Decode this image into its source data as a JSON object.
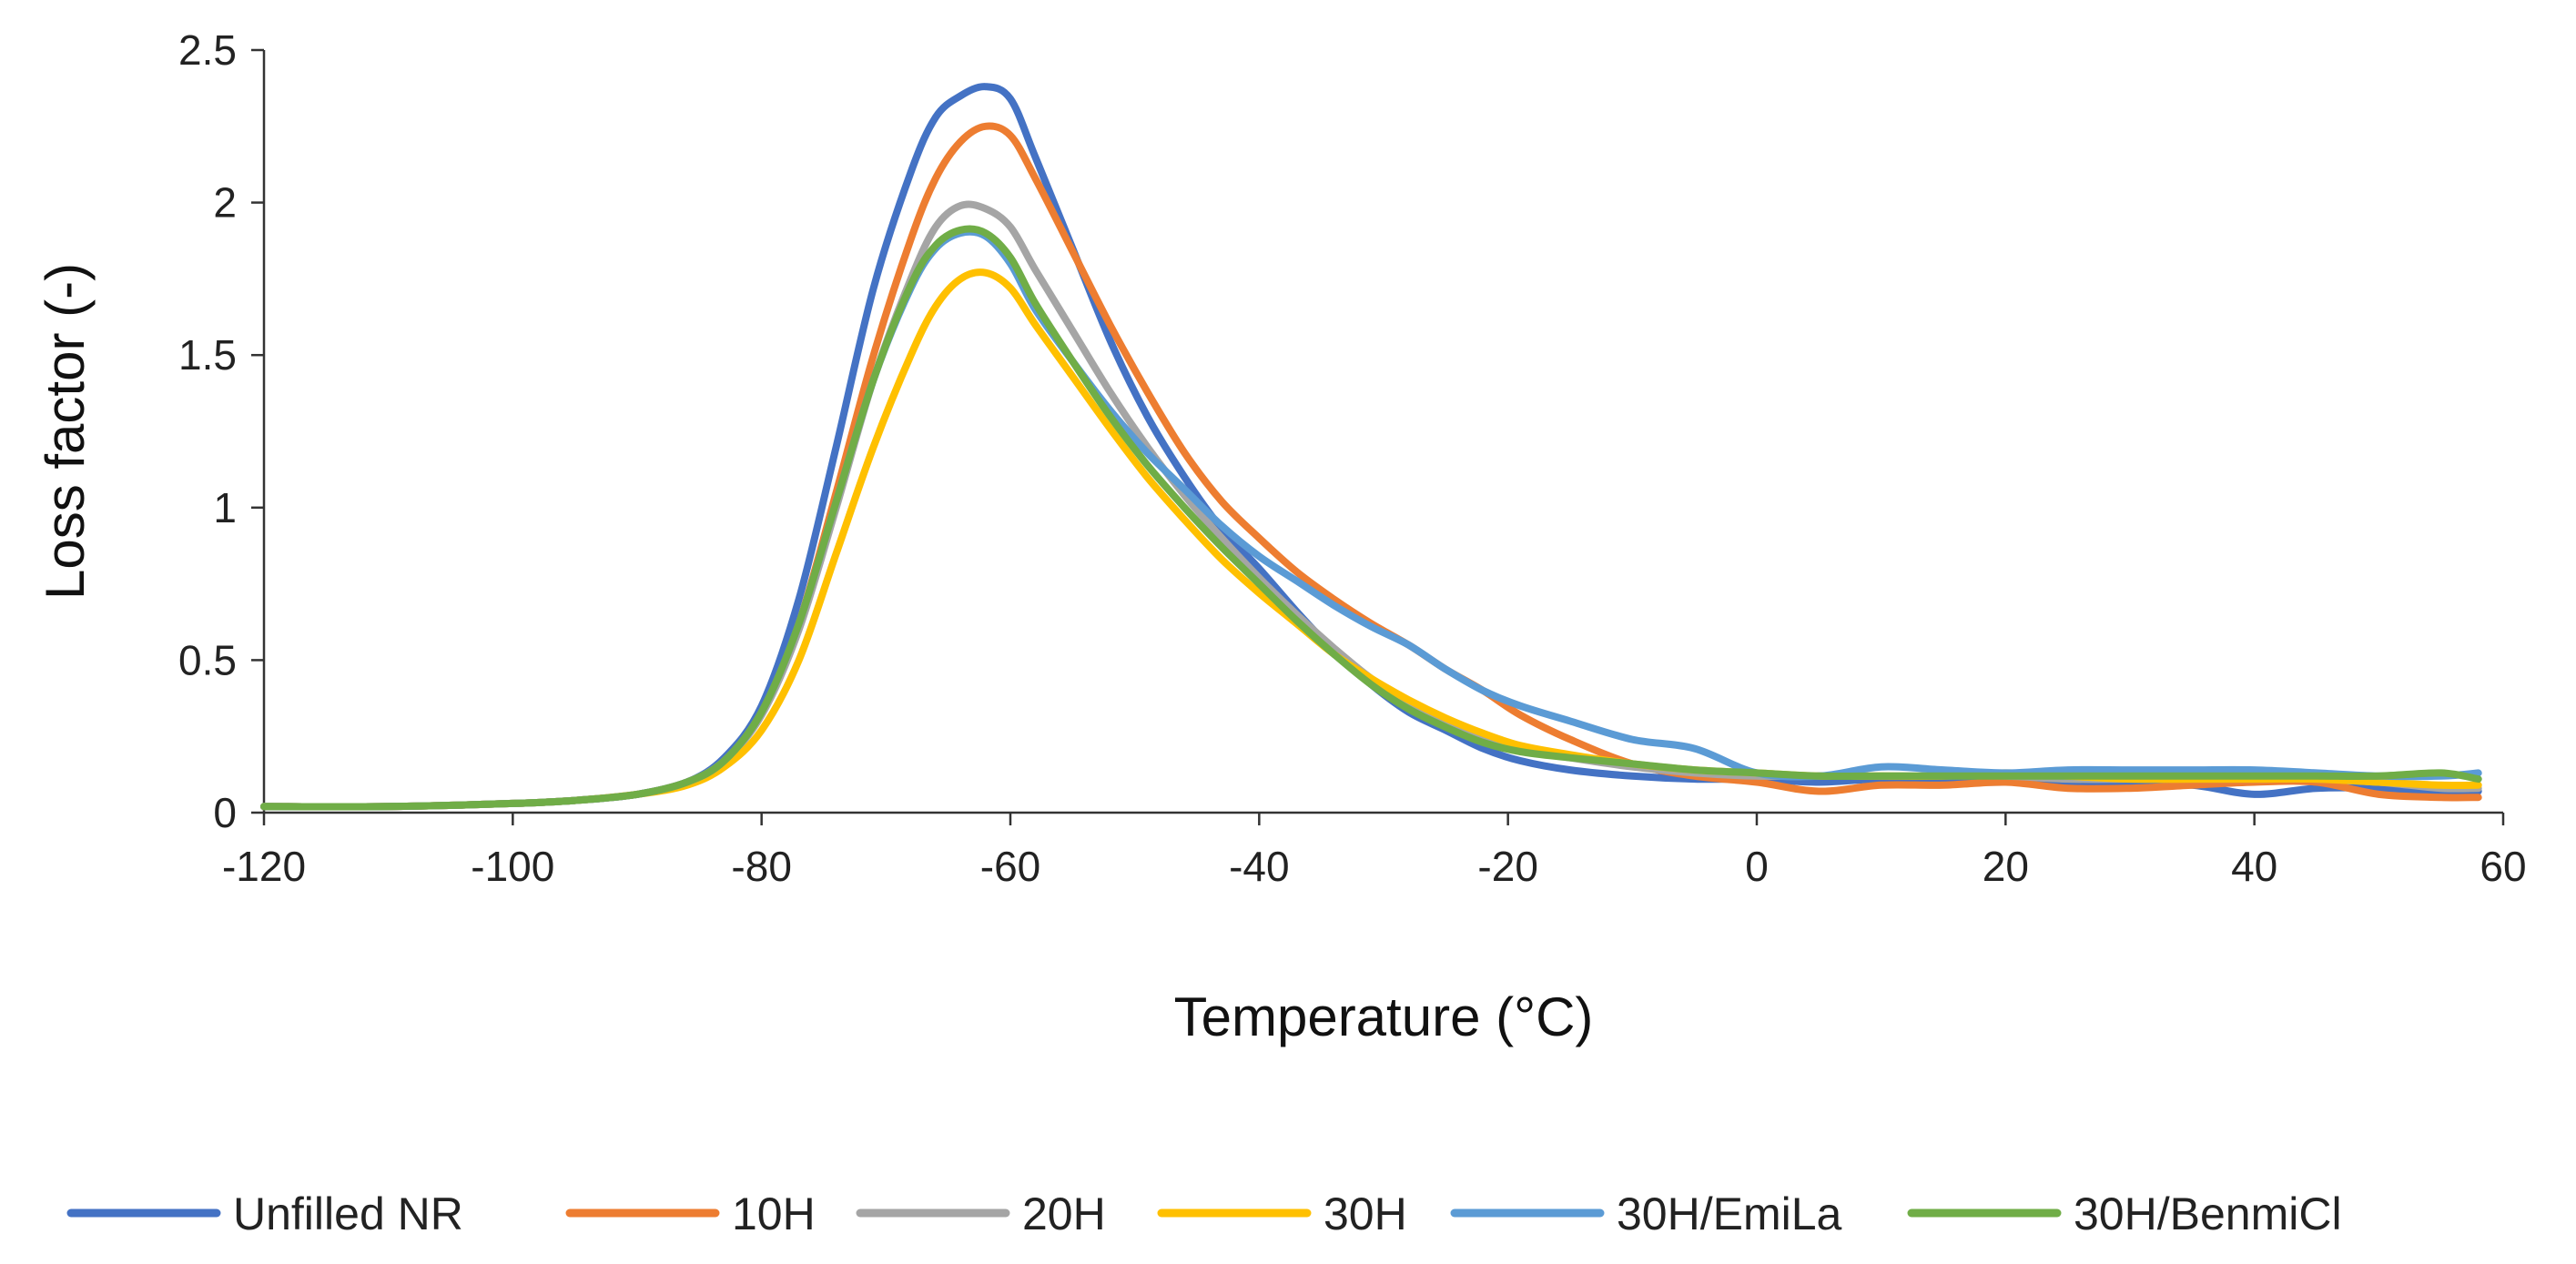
{
  "chart_data": {
    "type": "line",
    "xlabel": "Temperature (°C)",
    "ylabel": "Loss factor (-)",
    "xlim": [
      -120,
      60
    ],
    "ylim": [
      0,
      2.5
    ],
    "x_ticks": [
      "-120",
      "-100",
      "-80",
      "-60",
      "-40",
      "-20",
      "0",
      "20",
      "40",
      "60"
    ],
    "y_ticks": [
      "0",
      "0.5",
      "1",
      "1.5",
      "2",
      "2.5"
    ],
    "grid": false,
    "legend_position": "bottom",
    "series": [
      {
        "name": "Unfilled NR",
        "color": "#4472C4",
        "points": [
          [
            -120,
            0.02
          ],
          [
            -110,
            0.02
          ],
          [
            -100,
            0.03
          ],
          [
            -95,
            0.04
          ],
          [
            -90,
            0.06
          ],
          [
            -86,
            0.1
          ],
          [
            -83,
            0.18
          ],
          [
            -80,
            0.35
          ],
          [
            -77,
            0.7
          ],
          [
            -74,
            1.2
          ],
          [
            -71,
            1.72
          ],
          [
            -68,
            2.1
          ],
          [
            -66,
            2.28
          ],
          [
            -64,
            2.35
          ],
          [
            -62,
            2.38
          ],
          [
            -60,
            2.34
          ],
          [
            -58,
            2.15
          ],
          [
            -55,
            1.85
          ],
          [
            -52,
            1.55
          ],
          [
            -49,
            1.3
          ],
          [
            -46,
            1.1
          ],
          [
            -43,
            0.93
          ],
          [
            -40,
            0.8
          ],
          [
            -37,
            0.66
          ],
          [
            -34,
            0.53
          ],
          [
            -31,
            0.42
          ],
          [
            -28,
            0.33
          ],
          [
            -25,
            0.27
          ],
          [
            -22,
            0.21
          ],
          [
            -19,
            0.17
          ],
          [
            -15,
            0.14
          ],
          [
            -10,
            0.12
          ],
          [
            -5,
            0.11
          ],
          [
            0,
            0.11
          ],
          [
            5,
            0.1
          ],
          [
            10,
            0.11
          ],
          [
            15,
            0.1
          ],
          [
            20,
            0.1
          ],
          [
            25,
            0.1
          ],
          [
            30,
            0.09
          ],
          [
            35,
            0.09
          ],
          [
            40,
            0.06
          ],
          [
            45,
            0.08
          ],
          [
            50,
            0.08
          ],
          [
            55,
            0.07
          ],
          [
            58,
            0.07
          ]
        ]
      },
      {
        "name": "10H",
        "color": "#ED7D31",
        "points": [
          [
            -120,
            0.02
          ],
          [
            -110,
            0.02
          ],
          [
            -100,
            0.03
          ],
          [
            -95,
            0.04
          ],
          [
            -90,
            0.06
          ],
          [
            -86,
            0.1
          ],
          [
            -83,
            0.17
          ],
          [
            -80,
            0.33
          ],
          [
            -77,
            0.62
          ],
          [
            -74,
            1.05
          ],
          [
            -71,
            1.5
          ],
          [
            -68,
            1.88
          ],
          [
            -66,
            2.08
          ],
          [
            -64,
            2.2
          ],
          [
            -62,
            2.25
          ],
          [
            -60,
            2.22
          ],
          [
            -58,
            2.08
          ],
          [
            -55,
            1.84
          ],
          [
            -52,
            1.6
          ],
          [
            -49,
            1.38
          ],
          [
            -46,
            1.18
          ],
          [
            -43,
            1.02
          ],
          [
            -40,
            0.9
          ],
          [
            -37,
            0.79
          ],
          [
            -34,
            0.7
          ],
          [
            -31,
            0.62
          ],
          [
            -28,
            0.55
          ],
          [
            -25,
            0.47
          ],
          [
            -22,
            0.4
          ],
          [
            -19,
            0.32
          ],
          [
            -15,
            0.24
          ],
          [
            -10,
            0.16
          ],
          [
            -5,
            0.12
          ],
          [
            0,
            0.1
          ],
          [
            5,
            0.07
          ],
          [
            10,
            0.09
          ],
          [
            15,
            0.09
          ],
          [
            20,
            0.1
          ],
          [
            25,
            0.08
          ],
          [
            30,
            0.08
          ],
          [
            35,
            0.09
          ],
          [
            40,
            0.1
          ],
          [
            45,
            0.1
          ],
          [
            50,
            0.06
          ],
          [
            55,
            0.05
          ],
          [
            58,
            0.05
          ]
        ]
      },
      {
        "name": "20H",
        "color": "#A5A5A5",
        "points": [
          [
            -120,
            0.02
          ],
          [
            -110,
            0.02
          ],
          [
            -100,
            0.03
          ],
          [
            -95,
            0.04
          ],
          [
            -90,
            0.06
          ],
          [
            -86,
            0.1
          ],
          [
            -83,
            0.17
          ],
          [
            -80,
            0.32
          ],
          [
            -77,
            0.6
          ],
          [
            -74,
            1.0
          ],
          [
            -71,
            1.42
          ],
          [
            -68,
            1.75
          ],
          [
            -66,
            1.92
          ],
          [
            -64,
            1.99
          ],
          [
            -62,
            1.98
          ],
          [
            -60,
            1.92
          ],
          [
            -58,
            1.78
          ],
          [
            -55,
            1.58
          ],
          [
            -52,
            1.38
          ],
          [
            -49,
            1.2
          ],
          [
            -46,
            1.04
          ],
          [
            -43,
            0.9
          ],
          [
            -40,
            0.77
          ],
          [
            -37,
            0.65
          ],
          [
            -34,
            0.54
          ],
          [
            -31,
            0.44
          ],
          [
            -28,
            0.36
          ],
          [
            -25,
            0.3
          ],
          [
            -22,
            0.25
          ],
          [
            -19,
            0.21
          ],
          [
            -15,
            0.18
          ],
          [
            -10,
            0.15
          ],
          [
            -5,
            0.13
          ],
          [
            0,
            0.12
          ],
          [
            5,
            0.12
          ],
          [
            10,
            0.12
          ],
          [
            15,
            0.12
          ],
          [
            20,
            0.12
          ],
          [
            25,
            0.11
          ],
          [
            30,
            0.11
          ],
          [
            35,
            0.11
          ],
          [
            40,
            0.11
          ],
          [
            45,
            0.11
          ],
          [
            50,
            0.1
          ],
          [
            55,
            0.08
          ],
          [
            58,
            0.08
          ]
        ]
      },
      {
        "name": "30H",
        "color": "#FFC000",
        "points": [
          [
            -120,
            0.02
          ],
          [
            -110,
            0.02
          ],
          [
            -100,
            0.03
          ],
          [
            -95,
            0.04
          ],
          [
            -90,
            0.06
          ],
          [
            -86,
            0.09
          ],
          [
            -83,
            0.15
          ],
          [
            -80,
            0.27
          ],
          [
            -77,
            0.5
          ],
          [
            -74,
            0.85
          ],
          [
            -71,
            1.2
          ],
          [
            -68,
            1.5
          ],
          [
            -66,
            1.66
          ],
          [
            -64,
            1.75
          ],
          [
            -62,
            1.77
          ],
          [
            -60,
            1.72
          ],
          [
            -58,
            1.6
          ],
          [
            -55,
            1.43
          ],
          [
            -52,
            1.26
          ],
          [
            -49,
            1.1
          ],
          [
            -46,
            0.96
          ],
          [
            -43,
            0.83
          ],
          [
            -40,
            0.72
          ],
          [
            -37,
            0.62
          ],
          [
            -34,
            0.52
          ],
          [
            -31,
            0.44
          ],
          [
            -28,
            0.37
          ],
          [
            -25,
            0.31
          ],
          [
            -22,
            0.26
          ],
          [
            -19,
            0.22
          ],
          [
            -15,
            0.19
          ],
          [
            -10,
            0.16
          ],
          [
            -5,
            0.14
          ],
          [
            0,
            0.13
          ],
          [
            5,
            0.12
          ],
          [
            10,
            0.12
          ],
          [
            15,
            0.12
          ],
          [
            20,
            0.13
          ],
          [
            25,
            0.12
          ],
          [
            30,
            0.11
          ],
          [
            35,
            0.11
          ],
          [
            40,
            0.11
          ],
          [
            45,
            0.11
          ],
          [
            50,
            0.1
          ],
          [
            55,
            0.09
          ],
          [
            58,
            0.09
          ]
        ]
      },
      {
        "name": "30H/EmiLa",
        "color": "#5B9BD5",
        "points": [
          [
            -120,
            0.02
          ],
          [
            -110,
            0.02
          ],
          [
            -100,
            0.03
          ],
          [
            -95,
            0.04
          ],
          [
            -90,
            0.06
          ],
          [
            -86,
            0.1
          ],
          [
            -83,
            0.17
          ],
          [
            -80,
            0.33
          ],
          [
            -77,
            0.62
          ],
          [
            -74,
            1.02
          ],
          [
            -71,
            1.42
          ],
          [
            -68,
            1.72
          ],
          [
            -66,
            1.85
          ],
          [
            -64,
            1.9
          ],
          [
            -62,
            1.89
          ],
          [
            -60,
            1.8
          ],
          [
            -58,
            1.65
          ],
          [
            -55,
            1.48
          ],
          [
            -52,
            1.32
          ],
          [
            -49,
            1.18
          ],
          [
            -46,
            1.06
          ],
          [
            -43,
            0.94
          ],
          [
            -40,
            0.84
          ],
          [
            -37,
            0.76
          ],
          [
            -34,
            0.68
          ],
          [
            -31,
            0.61
          ],
          [
            -28,
            0.55
          ],
          [
            -25,
            0.47
          ],
          [
            -22,
            0.4
          ],
          [
            -19,
            0.35
          ],
          [
            -15,
            0.3
          ],
          [
            -10,
            0.24
          ],
          [
            -5,
            0.21
          ],
          [
            0,
            0.13
          ],
          [
            5,
            0.12
          ],
          [
            10,
            0.15
          ],
          [
            15,
            0.14
          ],
          [
            20,
            0.13
          ],
          [
            25,
            0.14
          ],
          [
            30,
            0.14
          ],
          [
            35,
            0.14
          ],
          [
            40,
            0.14
          ],
          [
            45,
            0.13
          ],
          [
            50,
            0.12
          ],
          [
            55,
            0.12
          ],
          [
            58,
            0.13
          ]
        ]
      },
      {
        "name": "30H/BenmiCl",
        "color": "#70AD47",
        "points": [
          [
            -120,
            0.02
          ],
          [
            -110,
            0.02
          ],
          [
            -100,
            0.03
          ],
          [
            -95,
            0.04
          ],
          [
            -90,
            0.06
          ],
          [
            -86,
            0.1
          ],
          [
            -83,
            0.17
          ],
          [
            -80,
            0.33
          ],
          [
            -77,
            0.62
          ],
          [
            -74,
            1.02
          ],
          [
            -71,
            1.42
          ],
          [
            -68,
            1.73
          ],
          [
            -66,
            1.86
          ],
          [
            -64,
            1.91
          ],
          [
            -62,
            1.9
          ],
          [
            -60,
            1.82
          ],
          [
            -58,
            1.67
          ],
          [
            -55,
            1.48
          ],
          [
            -52,
            1.3
          ],
          [
            -49,
            1.14
          ],
          [
            -46,
            1.0
          ],
          [
            -43,
            0.87
          ],
          [
            -40,
            0.75
          ],
          [
            -37,
            0.63
          ],
          [
            -34,
            0.52
          ],
          [
            -31,
            0.42
          ],
          [
            -28,
            0.34
          ],
          [
            -25,
            0.28
          ],
          [
            -22,
            0.23
          ],
          [
            -19,
            0.2
          ],
          [
            -15,
            0.18
          ],
          [
            -10,
            0.16
          ],
          [
            -5,
            0.14
          ],
          [
            0,
            0.13
          ],
          [
            5,
            0.12
          ],
          [
            10,
            0.12
          ],
          [
            15,
            0.12
          ],
          [
            20,
            0.12
          ],
          [
            25,
            0.12
          ],
          [
            30,
            0.12
          ],
          [
            35,
            0.12
          ],
          [
            40,
            0.12
          ],
          [
            45,
            0.12
          ],
          [
            50,
            0.12
          ],
          [
            55,
            0.13
          ],
          [
            58,
            0.11
          ]
        ]
      }
    ]
  }
}
